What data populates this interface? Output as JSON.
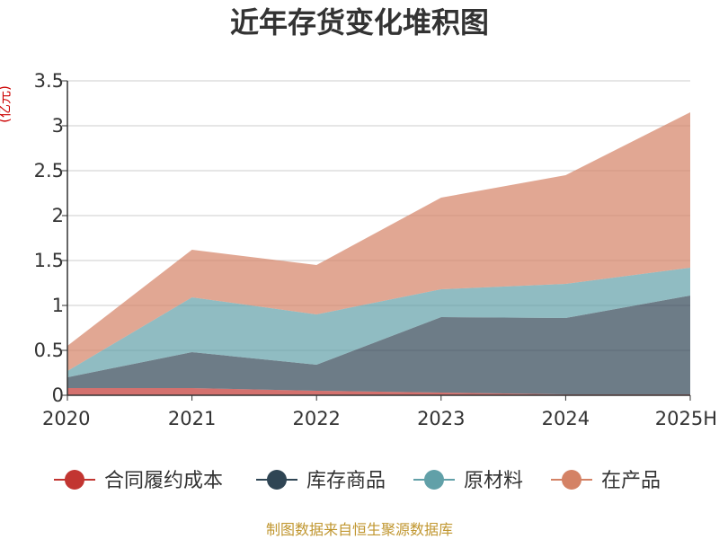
{
  "chart_data": {
    "type": "area",
    "stacked": true,
    "title": "近年存货变化堆积图",
    "unit_label": "(亿元)",
    "categories": [
      "2020",
      "2021",
      "2022",
      "2023",
      "2024",
      "2025H"
    ],
    "ylim": [
      0,
      3.5
    ],
    "yticks": [
      "0",
      "0.5",
      "1",
      "1.5",
      "2",
      "2.5",
      "3",
      "3.5"
    ],
    "grid": true,
    "legend_position": "bottom",
    "series": [
      {
        "name": "合同履约成本",
        "color": "#c23531",
        "values": [
          0.08,
          0.08,
          0.05,
          0.03,
          0.01,
          0.01
        ]
      },
      {
        "name": "库存商品",
        "color": "#2f4554",
        "values": [
          0.12,
          0.4,
          0.29,
          0.84,
          0.85,
          1.1
        ]
      },
      {
        "name": "原材料",
        "color": "#61a0a8",
        "values": [
          0.07,
          0.61,
          0.56,
          0.31,
          0.38,
          0.31
        ]
      },
      {
        "name": "在产品",
        "color": "#d48265",
        "values": [
          0.28,
          0.53,
          0.55,
          1.02,
          1.21,
          1.73
        ]
      }
    ],
    "source": "制图数据来自恒生聚源数据库"
  }
}
